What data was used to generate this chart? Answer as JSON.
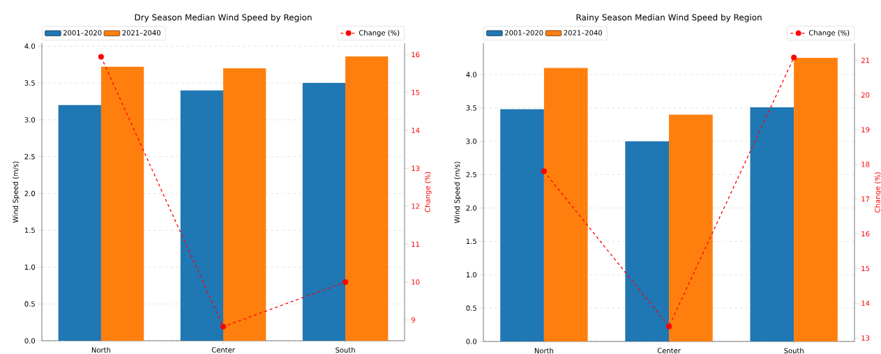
{
  "chart_data": [
    {
      "type": "bar",
      "title": "Dry Season Median Wind Speed by Region",
      "ylabel": "Wind Speed (m/s)",
      "y2label": "Change (%)",
      "categories": [
        "North",
        "Center",
        "South"
      ],
      "series": [
        {
          "name": "2001–2020",
          "color": "#1f77b4",
          "values": [
            3.2,
            3.4,
            3.5
          ]
        },
        {
          "name": "2021–2040",
          "color": "#ff7f0e",
          "values": [
            3.72,
            3.7,
            3.86
          ]
        },
        {
          "name": "Change (%)",
          "type": "line",
          "axis": "y2",
          "color": "#ff0000",
          "marker": "circle",
          "line_style": "dashed",
          "values": [
            15.94,
            8.82,
            10.0
          ]
        }
      ],
      "ylim": [
        0,
        4.04
      ],
      "yticks": [
        {
          "value": 0,
          "label": "0.0"
        },
        {
          "value": 0.5,
          "label": "0.5"
        },
        {
          "value": 1,
          "label": "1.0"
        },
        {
          "value": 1.5,
          "label": "1.5"
        },
        {
          "value": 2,
          "label": "2.0"
        },
        {
          "value": 2.5,
          "label": "2.5"
        },
        {
          "value": 3,
          "label": "3.0"
        },
        {
          "value": 3.5,
          "label": "3.5"
        },
        {
          "value": 4,
          "label": "4.0"
        }
      ],
      "y2lim": [
        8.45,
        16.3
      ],
      "y2ticks": [
        9,
        10,
        11,
        12,
        13,
        14,
        15,
        16
      ],
      "grid": "y",
      "legend": "top"
    },
    {
      "type": "bar",
      "title": "Rainy Season Median Wind Speed by Region",
      "ylabel": "Wind Speed (m/s)",
      "y2label": "Change (%)",
      "categories": [
        "North",
        "Center",
        "South"
      ],
      "series": [
        {
          "name": "2001–2020",
          "color": "#1f77b4",
          "values": [
            3.48,
            3.0,
            3.51
          ]
        },
        {
          "name": "2021–2040",
          "color": "#ff7f0e",
          "values": [
            4.1,
            3.4,
            4.25
          ]
        },
        {
          "name": "Change (%)",
          "type": "line",
          "axis": "y2",
          "color": "#ff0000",
          "marker": "circle",
          "line_style": "dashed",
          "values": [
            17.8,
            13.33,
            21.08
          ]
        }
      ],
      "ylim": [
        0,
        4.47
      ],
      "yticks": [
        {
          "value": 0,
          "label": "0.0"
        },
        {
          "value": 0.5,
          "label": "0.5"
        },
        {
          "value": 1,
          "label": "1.0"
        },
        {
          "value": 1.5,
          "label": "1.5"
        },
        {
          "value": 2,
          "label": "2.0"
        },
        {
          "value": 2.5,
          "label": "2.5"
        },
        {
          "value": 3,
          "label": "3.0"
        },
        {
          "value": 3.5,
          "label": "3.5"
        },
        {
          "value": 4,
          "label": "4.0"
        }
      ],
      "y2lim": [
        12.9,
        21.49
      ],
      "y2ticks": [
        13,
        14,
        15,
        16,
        17,
        18,
        19,
        20,
        21
      ],
      "grid": "y",
      "legend": "top"
    }
  ]
}
